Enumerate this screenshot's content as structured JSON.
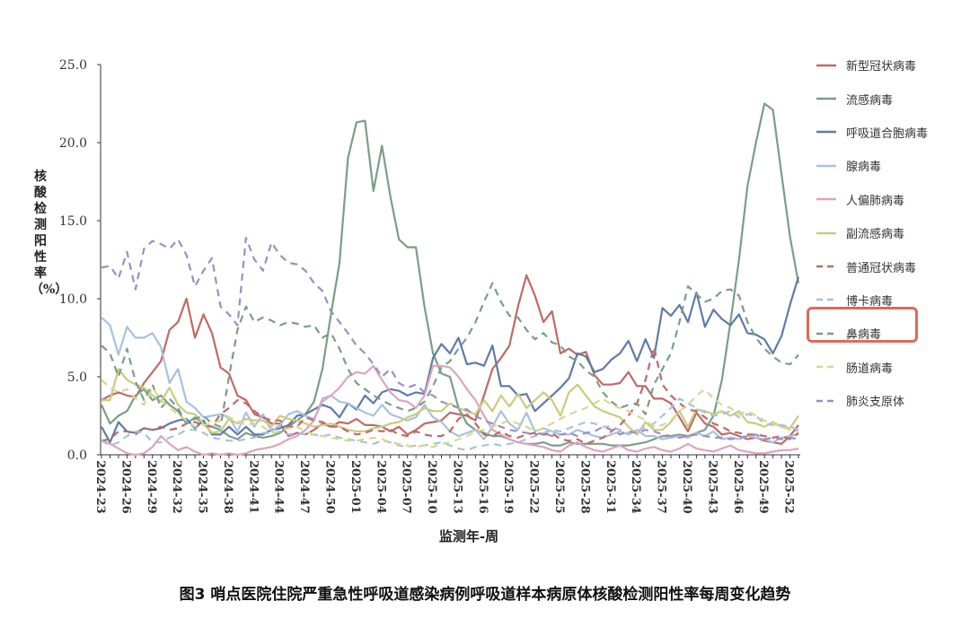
{
  "chart_data": {
    "type": "line",
    "title": "图3 哨点医院住院严重急性呼吸道感染病例呼吸道样本病原体核酸检测阳性率每周变化趋势",
    "xlabel": "监测年-周",
    "ylabel": "核酸检测阳性率（%）",
    "ylim": [
      0,
      25
    ],
    "yticks": [
      "0.0",
      "5.0",
      "10.0",
      "15.0",
      "20.0",
      "25.0"
    ],
    "xtick_labels": [
      "2024-23",
      "2024-26",
      "2024-29",
      "2024-32",
      "2024-35",
      "2024-38",
      "2024-41",
      "2024-44",
      "2024-47",
      "2024-50",
      "2025-01",
      "2025-04",
      "2025-07",
      "2025-10",
      "2025-13",
      "2025-16",
      "2025-19",
      "2025-22",
      "2025-25",
      "2025-28",
      "2025-31",
      "2025-34",
      "2025-37",
      "2025-40",
      "2025-43",
      "2025-46",
      "2025-49",
      "2025-52"
    ],
    "n_weeks": 83,
    "legend_position": "right",
    "highlighted_series": "鼻病毒",
    "highlight_color": "#e0685c",
    "series": [
      {
        "name": "新型冠状病毒",
        "color": "#bf6a66",
        "dash": false,
        "values": [
          3.5,
          3.8,
          4.0,
          3.8,
          3.7,
          4.6,
          5.3,
          6.0,
          8.0,
          8.5,
          10.0,
          7.5,
          9.0,
          7.8,
          5.6,
          5.2,
          3.8,
          3.5,
          2.6,
          2.4,
          2.0,
          2.0,
          1.2,
          1.4,
          1.3,
          1.6,
          2.0,
          1.8,
          2.1,
          2.0,
          2.3,
          1.9,
          1.9,
          1.8,
          1.5,
          1.8,
          1.3,
          1.6,
          2.0,
          2.1,
          2.2,
          2.7,
          2.6,
          2.5,
          2.2,
          3.8,
          5.5,
          6.2,
          7.0,
          9.5,
          11.5,
          10.2,
          8.5,
          9.2,
          6.5,
          6.8,
          6.4,
          6.6,
          5.1,
          4.5,
          4.5,
          4.6,
          5.3,
          4.4,
          4.4,
          3.6,
          3.6,
          3.3,
          2.4,
          1.5,
          2.7,
          2.0,
          1.8,
          1.3,
          1.4,
          1.2,
          1.0,
          1.1,
          0.9,
          0.8,
          0.7,
          1.2,
          1.9
        ]
      },
      {
        "name": "流感病毒",
        "color": "#7a9e87",
        "dash": false,
        "values": [
          3.2,
          2.0,
          2.5,
          2.8,
          3.8,
          4.2,
          3.5,
          3.8,
          3.2,
          2.8,
          2.0,
          2.4,
          2.0,
          1.8,
          1.6,
          1.2,
          1.0,
          1.4,
          1.2,
          1.1,
          1.2,
          1.4,
          1.8,
          2.2,
          2.6,
          3.4,
          5.5,
          9.0,
          12.3,
          19.0,
          21.3,
          21.4,
          16.9,
          19.8,
          16.5,
          13.8,
          13.3,
          13.3,
          9.5,
          6.5,
          5.2,
          5.0,
          3.0,
          2.0,
          1.6,
          1.4,
          1.2,
          1.2,
          1.0,
          0.8,
          0.7,
          0.7,
          0.8,
          0.6,
          0.6,
          0.8,
          0.7,
          0.7,
          0.7,
          0.7,
          0.6,
          0.6,
          0.6,
          0.7,
          0.8,
          1.0,
          1.2,
          1.2,
          1.3,
          1.2,
          1.4,
          1.6,
          2.5,
          4.8,
          8.5,
          12.5,
          17.2,
          20.0,
          22.5,
          22.1,
          18.0,
          14.0,
          11.0
        ]
      },
      {
        "name": "呼吸道合胞病毒",
        "color": "#5f7ba8",
        "dash": false,
        "values": [
          1.8,
          0.8,
          2.1,
          1.5,
          1.4,
          1.7,
          1.6,
          1.7,
          2.0,
          2.2,
          2.3,
          1.7,
          2.2,
          1.3,
          1.3,
          1.8,
          1.3,
          1.8,
          1.3,
          1.3,
          1.6,
          1.7,
          1.9,
          2.5,
          2.6,
          2.9,
          3.2,
          3.0,
          2.4,
          3.3,
          2.9,
          3.8,
          3.3,
          4.0,
          4.2,
          4.1,
          3.8,
          4.0,
          3.9,
          6.2,
          7.1,
          6.5,
          7.5,
          5.8,
          5.9,
          5.7,
          7.0,
          4.4,
          4.4,
          3.8,
          3.9,
          2.8,
          3.3,
          3.8,
          4.3,
          4.9,
          6.5,
          6.3,
          5.3,
          5.5,
          6.1,
          6.5,
          7.3,
          6.0,
          7.4,
          6.2,
          9.4,
          8.9,
          9.6,
          8.5,
          10.4,
          8.2,
          9.3,
          8.7,
          8.3,
          9.0,
          7.8,
          7.7,
          7.4,
          6.5,
          7.6,
          9.6,
          11.4
        ]
      },
      {
        "name": "腺病毒",
        "color": "#a9c1df",
        "dash": false,
        "values": [
          8.8,
          8.3,
          6.4,
          8.2,
          7.5,
          7.5,
          7.8,
          6.9,
          4.6,
          5.5,
          3.4,
          3.0,
          2.4,
          2.5,
          2.6,
          2.4,
          1.5,
          2.7,
          1.8,
          2.6,
          1.5,
          1.9,
          2.6,
          2.8,
          2.5,
          2.3,
          3.4,
          3.8,
          3.4,
          3.3,
          3.0,
          2.7,
          2.5,
          3.2,
          2.6,
          2.4,
          2.2,
          2.4,
          3.2,
          2.4,
          2.1,
          1.5,
          1.2,
          1.4,
          1.6,
          1.0,
          1.8,
          2.8,
          2.0,
          1.6,
          2.7,
          1.5,
          1.7,
          1.5,
          1.3,
          1.3,
          1.6,
          1.4,
          1.2,
          1.1,
          1.3,
          1.5,
          1.3,
          1.6,
          1.2,
          1.2,
          1.0,
          1.1,
          1.2,
          1.1,
          1.4,
          1.2,
          1.5,
          1.0,
          1.1,
          1.0,
          1.2,
          1.1,
          1.0,
          0.8,
          1.1,
          1.2,
          1.3
        ]
      },
      {
        "name": "人偏肺病毒",
        "color": "#dea3c3",
        "dash": false,
        "values": [
          0.9,
          0.7,
          0.4,
          0.1,
          0.0,
          0.1,
          0.5,
          1.2,
          0.7,
          0.3,
          0.5,
          0.2,
          0.0,
          0.1,
          0.0,
          0.1,
          0.0,
          0.1,
          0.3,
          0.4,
          0.5,
          0.7,
          1.0,
          1.2,
          1.6,
          2.2,
          3.6,
          3.8,
          4.3,
          5.0,
          5.3,
          5.2,
          5.7,
          4.8,
          4.0,
          3.5,
          3.4,
          3.0,
          3.8,
          5.7,
          5.7,
          5.6,
          5.0,
          4.2,
          3.5,
          2.5,
          1.6,
          1.3,
          1.0,
          0.8,
          0.7,
          0.6,
          0.5,
          0.3,
          0.2,
          0.6,
          0.8,
          0.5,
          0.3,
          0.2,
          0.4,
          0.6,
          0.3,
          0.2,
          0.4,
          0.5,
          0.3,
          0.2,
          0.4,
          0.7,
          0.4,
          0.3,
          0.2,
          0.4,
          0.6,
          0.3,
          0.2,
          0.1,
          0.1,
          0.2,
          0.3,
          0.3,
          0.4
        ]
      },
      {
        "name": "副流感病毒",
        "color": "#c9cc7e",
        "dash": false,
        "values": [
          3.5,
          3.5,
          5.5,
          4.8,
          4.5,
          4.3,
          3.8,
          3.4,
          4.3,
          3.2,
          2.7,
          2.6,
          2.0,
          1.4,
          1.5,
          2.3,
          2.0,
          2.3,
          2.2,
          2.2,
          1.8,
          2.5,
          2.3,
          2.2,
          2.0,
          1.8,
          1.9,
          2.0,
          1.8,
          1.6,
          1.5,
          1.5,
          1.7,
          1.8,
          2.0,
          2.1,
          2.4,
          2.6,
          3.0,
          2.8,
          2.8,
          3.3,
          3.0,
          2.8,
          2.6,
          3.5,
          2.8,
          3.8,
          3.1,
          3.9,
          3.0,
          3.5,
          4.0,
          3.5,
          2.5,
          4.0,
          4.5,
          3.8,
          3.1,
          2.8,
          2.6,
          2.4,
          1.8,
          1.3,
          2.1,
          1.6,
          1.6,
          2.1,
          2.8,
          1.8,
          2.9,
          2.8,
          2.6,
          2.8,
          2.5,
          2.8,
          2.1,
          2.0,
          1.8,
          2.1,
          1.8,
          1.7,
          2.5
        ]
      },
      {
        "name": "普通冠状病毒",
        "color": "#bf6a66",
        "dash": true,
        "values": [
          0.9,
          1.0,
          1.5,
          1.5,
          1.3,
          1.7,
          1.6,
          1.8,
          1.6,
          1.7,
          2.0,
          2.1,
          1.9,
          1.8,
          2.6,
          3.0,
          3.5,
          3.3,
          2.8,
          2.4,
          2.2,
          2.2,
          1.8,
          1.8,
          2.4,
          2.2,
          2.1,
          1.8,
          1.8,
          1.5,
          1.3,
          1.4,
          1.6,
          1.5,
          1.6,
          1.3,
          1.2,
          1.5,
          1.3,
          1.2,
          1.2,
          1.5,
          2.3,
          2.6,
          2.0,
          1.3,
          1.2,
          1.5,
          1.2,
          1.1,
          1.3,
          1.4,
          1.3,
          1.4,
          1.0,
          0.9,
          1.0,
          0.7,
          0.9,
          1.1,
          1.5,
          1.9,
          2.5,
          3.3,
          4.8,
          6.9,
          4.5,
          3.8,
          3.3,
          2.9,
          2.8,
          2.4,
          2.0,
          1.8,
          1.5,
          1.4,
          1.3,
          1.3,
          1.2,
          1.1,
          1.2,
          1.0,
          1.4
        ]
      },
      {
        "name": "博卡病毒",
        "color": "#a9c1df",
        "dash": true,
        "values": [
          0.9,
          0.6,
          0.8,
          1.2,
          1.5,
          1.4,
          0.8,
          0.8,
          1.1,
          1.3,
          1.6,
          1.6,
          1.4,
          1.1,
          1.0,
          0.9,
          0.9,
          1.0,
          1.1,
          1.4,
          1.4,
          1.5,
          1.3,
          1.4,
          1.3,
          1.3,
          1.2,
          1.3,
          1.1,
          1.0,
          0.9,
          0.8,
          0.7,
          0.9,
          0.8,
          0.6,
          0.5,
          0.6,
          0.6,
          0.7,
          0.8,
          0.6,
          0.4,
          0.3,
          0.5,
          0.6,
          0.7,
          0.6,
          0.7,
          0.8,
          1.0,
          1.2,
          1.4,
          1.6,
          1.5,
          1.7,
          1.9,
          2.1,
          2.0,
          1.8,
          1.8,
          1.6,
          1.4,
          1.5,
          1.8,
          2.0,
          2.5,
          3.0,
          3.6,
          3.3,
          3.0,
          2.7,
          2.5,
          2.6,
          2.8,
          2.4,
          2.6,
          2.5,
          2.0,
          1.9,
          1.9,
          1.8,
          1.6
        ]
      },
      {
        "name": "鼻病毒",
        "color": "#7a9e87",
        "dash": true,
        "values": [
          7.0,
          6.5,
          5.0,
          6.8,
          4.7,
          3.5,
          4.5,
          3.0,
          3.6,
          3.0,
          2.0,
          2.3,
          2.5,
          2.0,
          1.8,
          5.0,
          8.0,
          9.5,
          8.5,
          8.8,
          8.6,
          8.3,
          8.5,
          8.4,
          8.2,
          8.3,
          7.5,
          7.8,
          6.8,
          5.5,
          4.6,
          4.2,
          3.8,
          3.5,
          3.2,
          3.0,
          2.8,
          3.0,
          3.4,
          4.4,
          5.6,
          6.0,
          6.8,
          7.5,
          8.5,
          9.8,
          11.0,
          9.8,
          8.9,
          8.8,
          8.0,
          7.4,
          7.8,
          7.2,
          7.0,
          6.3,
          6.0,
          5.4,
          5.0,
          4.0,
          3.4,
          3.0,
          3.2,
          3.3,
          2.6,
          4.5,
          5.5,
          6.5,
          8.5,
          10.8,
          10.3,
          9.8,
          10.0,
          10.5,
          10.6,
          10.2,
          8.5,
          7.5,
          6.8,
          6.3,
          5.9,
          5.8,
          6.4
        ]
      },
      {
        "name": "肠道病毒",
        "color": "#d6d991",
        "dash": true,
        "values": [
          4.8,
          4.3,
          4.0,
          4.2,
          3.6,
          3.2,
          4.3,
          3.5,
          3.0,
          2.6,
          2.2,
          1.8,
          1.9,
          2.0,
          2.2,
          2.4,
          2.2,
          1.9,
          2.0,
          1.8,
          1.4,
          1.5,
          1.7,
          1.8,
          1.5,
          1.3,
          1.2,
          1.1,
          1.0,
          0.9,
          0.9,
          1.0,
          1.1,
          1.0,
          0.8,
          0.7,
          0.6,
          0.5,
          0.6,
          0.5,
          0.7,
          0.8,
          1.0,
          1.2,
          1.5,
          1.6,
          1.8,
          2.0,
          2.2,
          2.0,
          1.8,
          1.5,
          1.7,
          2.0,
          2.3,
          2.6,
          2.8,
          3.0,
          3.3,
          3.6,
          3.2,
          3.0,
          2.8,
          2.5,
          2.2,
          1.8,
          1.9,
          2.2,
          2.8,
          3.2,
          3.8,
          4.2,
          3.6,
          3.2,
          3.0,
          2.6,
          2.8,
          2.5,
          2.2,
          2.0,
          1.8,
          1.6,
          1.5
        ]
      },
      {
        "name": "肺炎支原体",
        "color": "#9c8fc2",
        "dash": true,
        "values": [
          12.0,
          12.1,
          11.3,
          13.0,
          10.6,
          13.2,
          13.7,
          13.5,
          13.2,
          13.8,
          12.8,
          10.8,
          11.8,
          12.6,
          9.5,
          9.0,
          8.3,
          13.9,
          12.5,
          11.8,
          13.6,
          12.8,
          12.3,
          12.2,
          11.8,
          11.0,
          10.5,
          9.2,
          8.5,
          7.8,
          7.0,
          6.5,
          5.8,
          5.0,
          5.5,
          4.6,
          4.3,
          4.5,
          4.0,
          3.8,
          3.4,
          3.2,
          3.0,
          2.9,
          2.5,
          2.2,
          2.0,
          1.8,
          1.6,
          1.5,
          1.4,
          1.3,
          1.4,
          1.2,
          1.3,
          1.4,
          1.2,
          1.4,
          1.5,
          1.8,
          1.6,
          1.3,
          1.5,
          1.4,
          1.6,
          1.5,
          1.3,
          1.2,
          1.1,
          1.2,
          1.3,
          1.2,
          1.1,
          1.1,
          1.0,
          1.1,
          1.2,
          1.3,
          1.0,
          1.1,
          1.0,
          1.1,
          1.0
        ]
      }
    ]
  }
}
